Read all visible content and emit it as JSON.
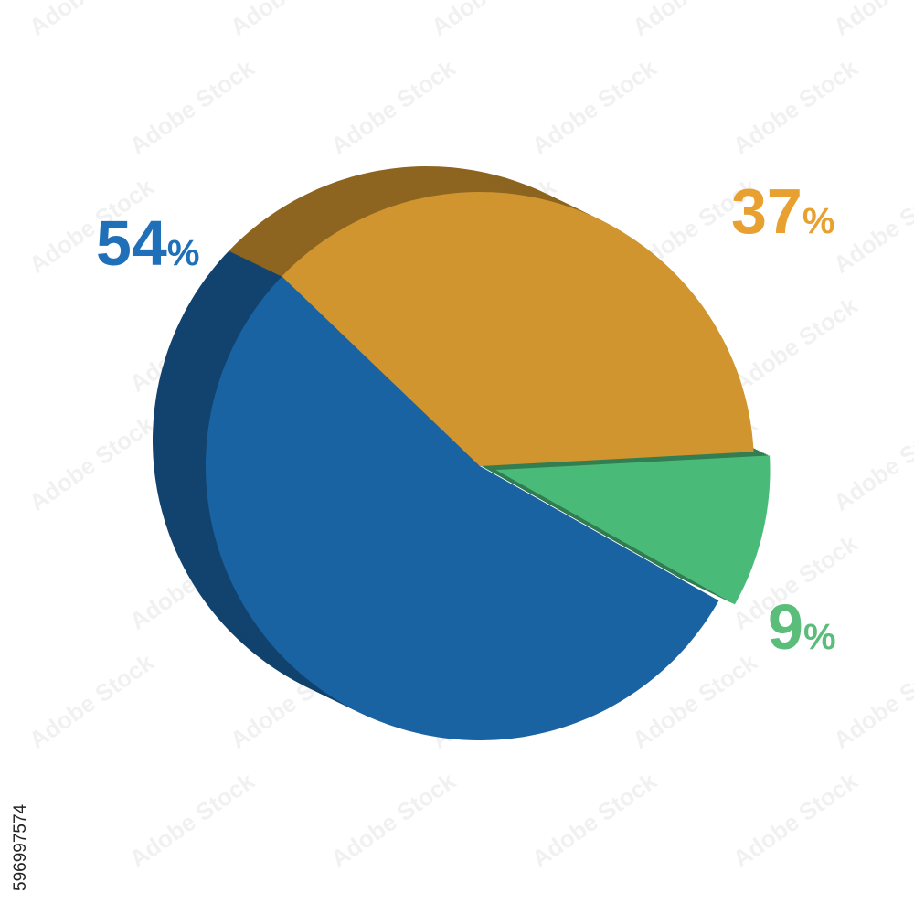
{
  "chart_data": {
    "type": "pie",
    "values": [
      9,
      54,
      37
    ],
    "value_labels": [
      "9%",
      "54%",
      "37%"
    ],
    "colors": [
      "#4aba78",
      "#1a63a2",
      "#d0952f"
    ],
    "label_colors": [
      "#5bbd7a",
      "#1f70b8",
      "#e8a030"
    ],
    "watermark": "Adobe Stock",
    "stock_id": "596997574"
  }
}
